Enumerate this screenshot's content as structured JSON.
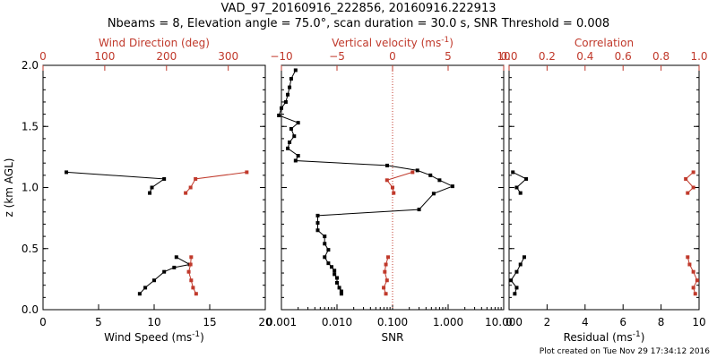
{
  "title_line1": "VAD_97_20160916_222856, 20160916.222913",
  "title_line2": "Nbeams = 8, Elevation angle = 75.0°, scan duration = 30.0 s, SNR Threshold = 0.008",
  "footer": "Plot created on Tue Nov 29 17:34:12 2016",
  "colors": {
    "primary": "#000000",
    "secondary": "#c0392b"
  },
  "chart_data": [
    {
      "type": "line",
      "ylabel": "z (km AGL)",
      "ylim": [
        0,
        2
      ],
      "y_ticks": [
        0.0,
        0.5,
        1.0,
        1.5,
        2.0
      ],
      "y_tick_labels": [
        "0.0",
        "0.5",
        "1.0",
        "1.5",
        "2.0"
      ],
      "x_bottom": {
        "label": "Wind Speed (ms",
        "label_sup": "-1",
        "label_suffix": ")",
        "lim": [
          0,
          20
        ],
        "ticks": [
          0,
          5,
          10,
          15,
          20
        ],
        "tick_labels": [
          "0",
          "5",
          "10",
          "15",
          "20"
        ],
        "scale": "linear"
      },
      "x_top": {
        "label": "Wind Direction (deg)",
        "lim": [
          0,
          360
        ],
        "ticks": [
          0,
          100,
          200,
          300
        ],
        "tick_labels": [
          "0",
          "100",
          "200",
          "300"
        ],
        "scale": "linear"
      },
      "series": [
        {
          "axis": "bottom",
          "color": "#000000",
          "segments": [
            {
              "points": [
                [
                  2.1,
                  1.125
                ],
                [
                  10.9,
                  1.07
                ],
                [
                  9.8,
                  1.0
                ],
                [
                  9.6,
                  0.955
                ]
              ]
            },
            {
              "points": [
                [
                  12.0,
                  0.43
                ],
                [
                  13.2,
                  0.37
                ],
                [
                  11.8,
                  0.345
                ],
                [
                  10.9,
                  0.31
                ],
                [
                  10.0,
                  0.24
                ],
                [
                  9.2,
                  0.18
                ],
                [
                  8.7,
                  0.13
                ]
              ]
            }
          ]
        },
        {
          "axis": "top",
          "color": "#c0392b",
          "segments": [
            {
              "points": [
                [
                  330,
                  1.125
                ],
                [
                  247,
                  1.07
                ],
                [
                  239,
                  1.0
                ],
                [
                  231,
                  0.955
                ]
              ]
            },
            {
              "points": [
                [
                  240,
                  0.43
                ],
                [
                  239,
                  0.37
                ],
                [
                  236,
                  0.31
                ],
                [
                  240,
                  0.24
                ],
                [
                  243,
                  0.18
                ],
                [
                  248,
                  0.13
                ]
              ]
            }
          ]
        }
      ]
    },
    {
      "type": "line",
      "ylim": [
        0,
        2
      ],
      "x_bottom": {
        "label": "SNR",
        "lim": [
          0.001,
          10
        ],
        "ticks": [
          0.001,
          0.01,
          0.1,
          1,
          10
        ],
        "tick_labels": [
          "0.001",
          "0.010",
          "0.100",
          "1.000",
          "10.000"
        ],
        "scale": "log"
      },
      "x_top": {
        "label": "Vertical velocity (ms",
        "label_sup": "-1",
        "label_suffix": ")",
        "lim": [
          -10,
          10
        ],
        "ticks": [
          -10,
          -5,
          0,
          5,
          10
        ],
        "tick_labels": [
          "−10",
          "−5",
          "0",
          "5",
          "10"
        ],
        "scale": "linear",
        "zero_line": 0
      },
      "series": [
        {
          "axis": "bottom",
          "color": "#000000",
          "segments": [
            {
              "points": [
                [
                  0.0018,
                  1.96
                ],
                [
                  0.0015,
                  1.89
                ],
                [
                  0.0014,
                  1.82
                ],
                [
                  0.0013,
                  1.76
                ],
                [
                  0.0012,
                  1.7
                ],
                [
                  0.001,
                  1.65
                ],
                [
                  0.0009,
                  1.59
                ],
                [
                  0.002,
                  1.53
                ],
                [
                  0.0015,
                  1.48
                ],
                [
                  0.0017,
                  1.42
                ],
                [
                  0.0014,
                  1.37
                ],
                [
                  0.0013,
                  1.32
                ],
                [
                  0.002,
                  1.26
                ],
                [
                  0.0018,
                  1.22
                ],
                [
                  0.08,
                  1.18
                ],
                [
                  0.28,
                  1.14
                ],
                [
                  0.48,
                  1.1
                ],
                [
                  0.7,
                  1.06
                ],
                [
                  1.2,
                  1.01
                ],
                [
                  0.55,
                  0.95
                ],
                [
                  0.3,
                  0.82
                ],
                [
                  0.0045,
                  0.77
                ],
                [
                  0.0045,
                  0.71
                ],
                [
                  0.0045,
                  0.65
                ],
                [
                  0.006,
                  0.6
                ],
                [
                  0.006,
                  0.54
                ],
                [
                  0.007,
                  0.49
                ],
                [
                  0.006,
                  0.43
                ],
                [
                  0.007,
                  0.38
                ],
                [
                  0.008,
                  0.35
                ],
                [
                  0.009,
                  0.32
                ],
                [
                  0.009,
                  0.29
                ],
                [
                  0.01,
                  0.26
                ],
                [
                  0.01,
                  0.22
                ],
                [
                  0.011,
                  0.18
                ],
                [
                  0.012,
                  0.15
                ],
                [
                  0.012,
                  0.13
                ]
              ]
            }
          ]
        },
        {
          "axis": "top",
          "color": "#c0392b",
          "segments": [
            {
              "points": [
                [
                  1.8,
                  1.125
                ],
                [
                  -0.5,
                  1.06
                ],
                [
                  0.0,
                  1.0
                ],
                [
                  0.1,
                  0.955
                ]
              ]
            },
            {
              "points": [
                [
                  -0.4,
                  0.43
                ],
                [
                  -0.6,
                  0.37
                ],
                [
                  -0.7,
                  0.31
                ],
                [
                  -0.5,
                  0.24
                ],
                [
                  -0.8,
                  0.18
                ],
                [
                  -0.6,
                  0.13
                ]
              ]
            }
          ]
        }
      ]
    },
    {
      "type": "line",
      "ylim": [
        0,
        2
      ],
      "x_bottom": {
        "label": "Residual (ms",
        "label_sup": "-1",
        "label_suffix": ")",
        "lim": [
          0,
          10
        ],
        "ticks": [
          0,
          2,
          4,
          6,
          8,
          10
        ],
        "tick_labels": [
          "0",
          "2",
          "4",
          "6",
          "8",
          "10"
        ],
        "scale": "linear"
      },
      "x_top": {
        "label": "Correlation",
        "lim": [
          0,
          1
        ],
        "ticks": [
          0,
          0.2,
          0.4,
          0.6,
          0.8,
          1.0
        ],
        "tick_labels": [
          "0.0",
          "0.2",
          "0.4",
          "0.6",
          "0.8",
          "1.0"
        ],
        "scale": "linear"
      },
      "series": [
        {
          "axis": "bottom",
          "color": "#000000",
          "segments": [
            {
              "points": [
                [
                  0.2,
                  1.125
                ],
                [
                  0.9,
                  1.07
                ],
                [
                  0.4,
                  1.0
                ],
                [
                  0.6,
                  0.955
                ]
              ]
            },
            {
              "points": [
                [
                  0.8,
                  0.43
                ],
                [
                  0.6,
                  0.37
                ],
                [
                  0.4,
                  0.31
                ],
                [
                  0.1,
                  0.24
                ],
                [
                  0.4,
                  0.18
                ],
                [
                  0.3,
                  0.13
                ]
              ]
            }
          ]
        },
        {
          "axis": "top",
          "color": "#c0392b",
          "segments": [
            {
              "points": [
                [
                  0.97,
                  1.125
                ],
                [
                  0.93,
                  1.07
                ],
                [
                  0.97,
                  1.0
                ],
                [
                  0.94,
                  0.955
                ]
              ]
            },
            {
              "points": [
                [
                  0.94,
                  0.43
                ],
                [
                  0.95,
                  0.37
                ],
                [
                  0.97,
                  0.31
                ],
                [
                  0.99,
                  0.24
                ],
                [
                  0.97,
                  0.18
                ],
                [
                  0.98,
                  0.13
                ]
              ]
            }
          ]
        }
      ]
    }
  ]
}
